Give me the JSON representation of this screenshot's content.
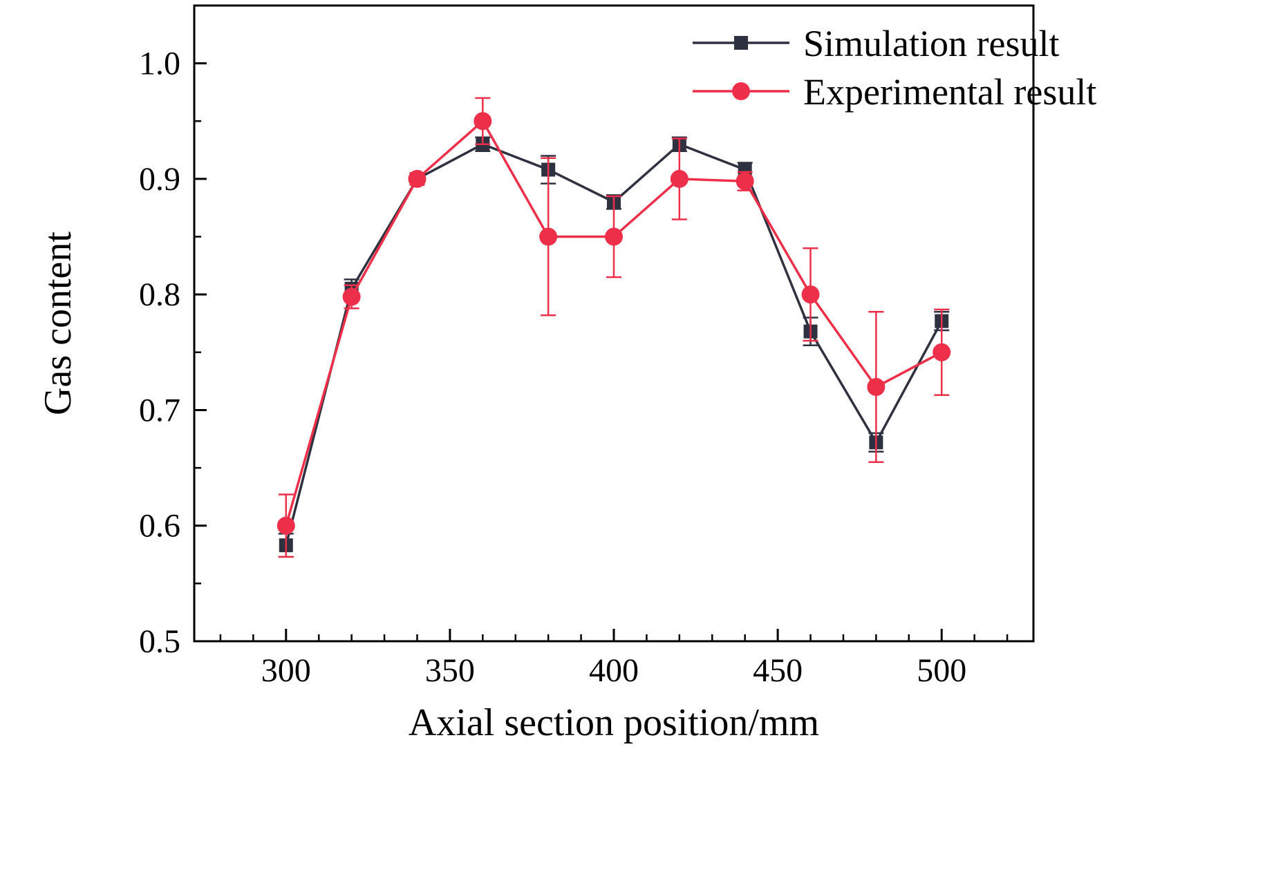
{
  "background": "#ffffff",
  "chart_data": {
    "type": "line",
    "title": "",
    "xlabel": "Axial section position/mm",
    "ylabel": "Gas content",
    "xlim": [
      272,
      528
    ],
    "ylim": [
      0.5,
      1.05
    ],
    "x_major_ticks": [
      300,
      350,
      400,
      450,
      500
    ],
    "x_minor_step": 10,
    "y_major_ticks": [
      0.5,
      0.6,
      0.7,
      0.8,
      0.9,
      1.0
    ],
    "y_minor_step": 0.05,
    "grid": false,
    "legend_position": "top-right-inside",
    "x": [
      300,
      320,
      340,
      360,
      380,
      400,
      420,
      440,
      460,
      480,
      500
    ],
    "series": [
      {
        "name": "Simulation result",
        "marker": "square",
        "color": "#2e3140",
        "values": [
          0.583,
          0.805,
          0.9,
          0.93,
          0.908,
          0.88,
          0.93,
          0.908,
          0.768,
          0.672,
          0.777
        ],
        "errors": [
          0.01,
          0.008,
          0.004,
          0.006,
          0.012,
          0.006,
          0.006,
          0.006,
          0.012,
          0.008,
          0.008
        ]
      },
      {
        "name": "Experimental result",
        "marker": "circle",
        "color": "#ed2f49",
        "values": [
          0.6,
          0.798,
          0.9,
          0.95,
          0.85,
          0.85,
          0.9,
          0.898,
          0.8,
          0.72,
          0.75
        ],
        "errors": [
          0.027,
          0.01,
          0.005,
          0.02,
          0.068,
          0.035,
          0.035,
          0.008,
          0.04,
          0.065,
          0.037
        ]
      }
    ]
  }
}
